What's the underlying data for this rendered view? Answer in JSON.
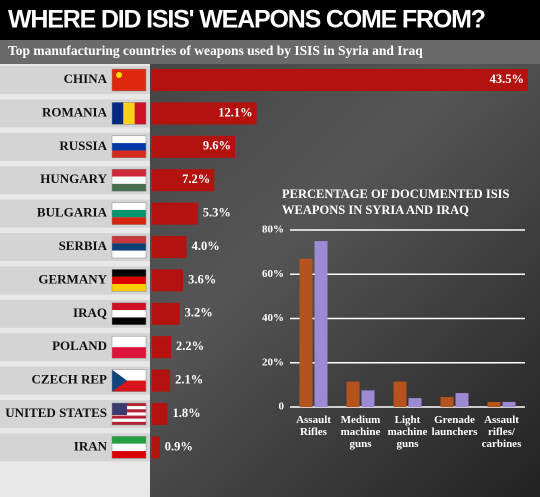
{
  "title": "WHERE DID ISIS' WEAPONS COME FROM?",
  "chart_data": [
    {
      "type": "bar",
      "orientation": "horizontal",
      "title": "Top manufacturing countries of weapons used by ISIS in Syria and Iraq",
      "categories": [
        "CHINA",
        "ROMANIA",
        "RUSSIA",
        "HUNGARY",
        "BULGARIA",
        "SERBIA",
        "GERMANY",
        "IRAQ",
        "POLAND",
        "CZECH REP",
        "UNITED STATES",
        "IRAN"
      ],
      "values": [
        43.5,
        12.1,
        9.6,
        7.2,
        5.3,
        4.0,
        3.6,
        3.2,
        2.2,
        2.1,
        1.8,
        0.9
      ],
      "value_labels": [
        "43.5%",
        "12.1%",
        "9.6%",
        "7.2%",
        "5.3%",
        "4.0%",
        "3.6%",
        "3.2%",
        "2.2%",
        "2.1%",
        "1.8%",
        "0.9%"
      ],
      "color": "#b3120f"
    },
    {
      "type": "bar",
      "title": "PERCENTAGE OF DOCUMENTED ISIS WEAPONS IN SYRIA AND IRAQ",
      "categories": [
        "Assault Rifles",
        "Medium machine guns",
        "Light machine guns",
        "Grenade launchers",
        "Assault rifles/ carbines"
      ],
      "series": [
        {
          "color": "#b4531c",
          "values": [
            67,
            11.5,
            11.5,
            4.5,
            2.3
          ]
        },
        {
          "color": "#9c8bd2",
          "values": [
            75,
            7.5,
            4,
            6.3,
            2.3
          ]
        }
      ],
      "ylim": [
        0,
        80
      ],
      "yticks": [
        0,
        {
          "value": 20,
          "label": "20%"
        },
        {
          "value": 40,
          "label": "40%"
        },
        {
          "value": 60,
          "label": "60%"
        },
        {
          "value": 80,
          "label": "80%"
        }
      ],
      "grid": true
    }
  ]
}
